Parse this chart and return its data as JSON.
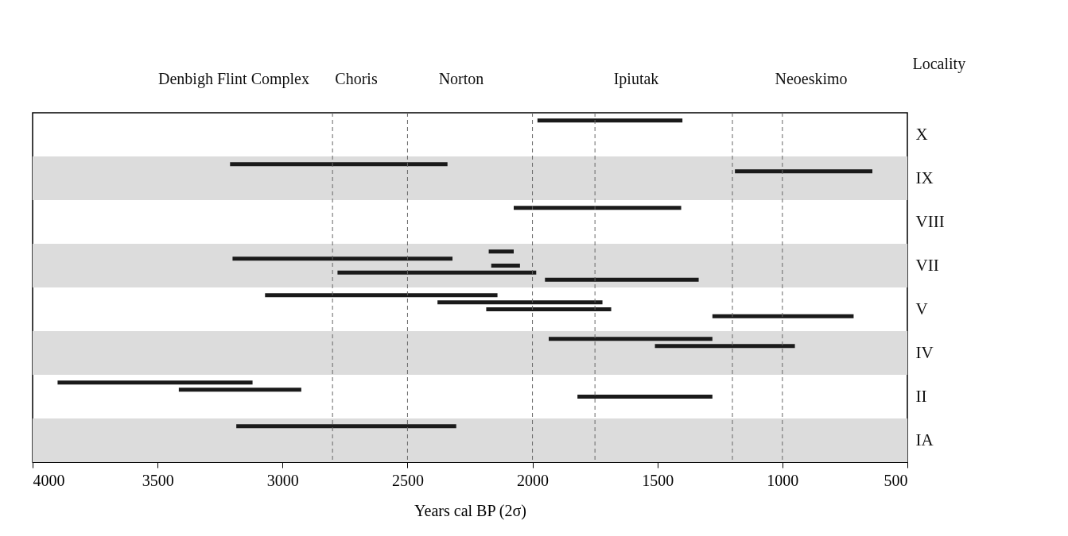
{
  "chart_data": {
    "type": "bar",
    "orientation": "horizontal",
    "xlabel": "Years cal BP  (2σ)",
    "ylabel": "Locality",
    "categories": [
      "X",
      "IX",
      "VIII",
      "VII",
      "V",
      "IV",
      "II",
      "IA"
    ],
    "series": [
      {
        "color": "#1a1a1a",
        "base": [
          1400,
          2340,
          1405,
          2075,
          2140,
          1280,
          3120,
          2305
        ],
        "values": [
          580,
          870,
          670,
          100,
          930,
          655,
          780,
          880
        ]
      },
      {
        "color": "#1a1a1a",
        "base": [
          null,
          640,
          null,
          2320,
          1720,
          950,
          2925,
          null
        ],
        "values": [
          null,
          550,
          null,
          880,
          660,
          560,
          490,
          null
        ]
      },
      {
        "color": "#1a1a1a",
        "base": [
          null,
          null,
          null,
          2050,
          1685,
          null,
          1280,
          null
        ],
        "values": [
          null,
          null,
          null,
          115,
          500,
          null,
          540,
          null
        ]
      },
      {
        "color": "#1a1a1a",
        "base": [
          null,
          null,
          null,
          1985,
          715,
          null,
          null,
          null
        ],
        "values": [
          null,
          null,
          null,
          795,
          565,
          null,
          null,
          null
        ]
      },
      {
        "color": "#1a1a1a",
        "base": [
          null,
          null,
          null,
          1335,
          null,
          null,
          null,
          null
        ],
        "values": [
          null,
          null,
          null,
          615,
          null,
          null,
          null,
          null
        ]
      }
    ],
    "xlim": [
      4000,
      500
    ],
    "xticks": [
      4000,
      3500,
      3000,
      2500,
      2000,
      1500,
      1000,
      500
    ],
    "ref_lines": [
      {
        "axis": "x",
        "value": 2800,
        "color": "#666666",
        "line_style": "dashed"
      },
      {
        "axis": "x",
        "value": 2500,
        "color": "#666666",
        "line_style": "dashed"
      },
      {
        "axis": "x",
        "value": 2000,
        "color": "#666666",
        "line_style": "dashed"
      },
      {
        "axis": "x",
        "value": 1750,
        "color": "#666666",
        "line_style": "dashed"
      },
      {
        "axis": "x",
        "value": 1200,
        "color": "#666666",
        "line_style": "dashed"
      },
      {
        "axis": "x",
        "value": 1000,
        "color": "#666666",
        "line_style": "dashed"
      }
    ],
    "bands": [
      {
        "axis": "y",
        "from": "IX",
        "to": "IX",
        "color": "#dcdcdc"
      },
      {
        "axis": "y",
        "from": "VII",
        "to": "VII",
        "color": "#dcdcdc"
      },
      {
        "axis": "y",
        "from": "IV",
        "to": "IV",
        "color": "#dcdcdc"
      },
      {
        "axis": "y",
        "from": "IA",
        "to": "IA",
        "color": "#dcdcdc"
      }
    ],
    "annotations": [
      "Denbigh Flint Complex",
      "Choris",
      "Norton",
      "Ipiutak",
      "Neoeskimo"
    ]
  }
}
